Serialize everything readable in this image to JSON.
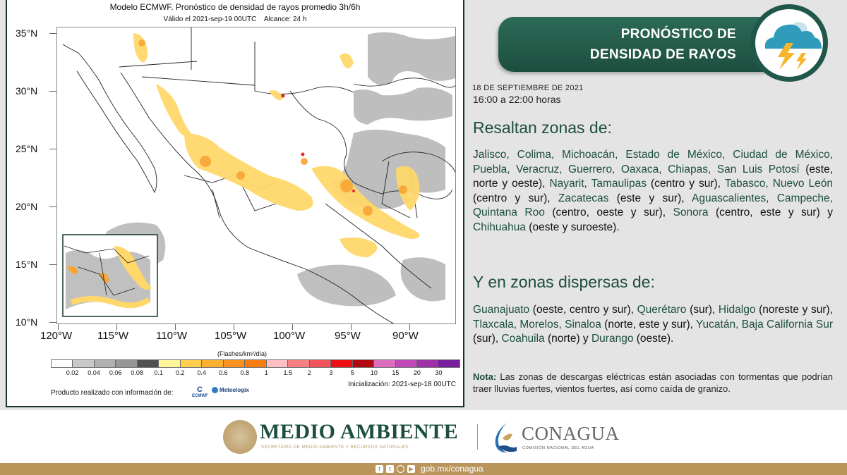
{
  "map": {
    "title": "Modelo ECMWF. Pronóstico de densidad de rayos promedio 3h/6h",
    "subtitle": "Válido el 2021-sep-19 00UTC    Alcance: 24 h",
    "lat_labels": [
      "35°N",
      "30°N",
      "25°N",
      "20°N",
      "15°N",
      "10°N"
    ],
    "lon_labels": [
      "120°W",
      "115°W",
      "110°W",
      "105°W",
      "100°W",
      "95°W",
      "90°W"
    ],
    "colorbar": {
      "unit": "(Flashes/km²/día)",
      "colors": [
        "#ffffff",
        "#c8c8c8",
        "#b0b0b0",
        "#969696",
        "#505050",
        "#fff59a",
        "#ffcf50",
        "#ffb030",
        "#fb9320",
        "#f67d10",
        "#ffbfc3",
        "#f98080",
        "#f2545b",
        "#ee1010",
        "#b00a10",
        "#dc6cbc",
        "#c048b8",
        "#9e30aa",
        "#7a1ea0"
      ],
      "ticks": [
        "0.02",
        "0.04",
        "0.06",
        "0.08",
        "0.1",
        "0.2",
        "0.4",
        "0.6",
        "0.8",
        "1",
        "1.5",
        "2",
        "3",
        "5",
        "10",
        "15",
        "20",
        "30"
      ]
    },
    "initialization": "Inicialización: 2021-sep-18 00UTC",
    "credit": "Producto realizado con información de:",
    "logos": {
      "ecmwf": "ECMWF",
      "meteologix": "Meteologix"
    }
  },
  "banner": {
    "line1": "PRONÓSTICO DE",
    "line2": "DENSIDAD DE RAYOS",
    "icon": "storm-cloud-lightning-icon"
  },
  "date": "18 DE SEPTIEMBRE DE 2021",
  "hours": "16:00 a 22:00 horas",
  "highlight": {
    "heading": "Resaltan zonas de:",
    "items": [
      {
        "state": "Jalisco",
        "detail": ""
      },
      {
        "state": "Colima",
        "detail": ""
      },
      {
        "state": "Michoacán",
        "detail": ""
      },
      {
        "state": "Estado de México",
        "detail": ""
      },
      {
        "state": "Ciudad de México",
        "detail": ""
      },
      {
        "state": "Puebla",
        "detail": ""
      },
      {
        "state": "Veracruz",
        "detail": ""
      },
      {
        "state": "Guerrero",
        "detail": ""
      },
      {
        "state": "Oaxaca",
        "detail": ""
      },
      {
        "state": "Chiapas",
        "detail": ""
      },
      {
        "state": "San Luis Potosí",
        "detail": "(este, norte y oeste)"
      },
      {
        "state": "Nayarit",
        "detail": ""
      },
      {
        "state": "Tamaulipas",
        "detail": "(centro y sur)"
      },
      {
        "state": "Tabasco",
        "detail": ""
      },
      {
        "state": "Nuevo León",
        "detail": "(centro y sur)"
      },
      {
        "state": "Zacatecas",
        "detail": "(este y sur)"
      },
      {
        "state": "Aguascalientes",
        "detail": ""
      },
      {
        "state": "Campeche",
        "detail": ""
      },
      {
        "state": "Quintana Roo",
        "detail": "(centro, oeste y sur)"
      },
      {
        "state": "Sonora",
        "detail": "(centro, este y sur)"
      },
      {
        "state": "Chihuahua",
        "detail": "(oeste y suroeste)"
      }
    ],
    "text": {
      "p1": "Jalisco, Colima, Michoacán, Estado de México, Ciudad de México, Puebla, Veracruz, Guerrero, Oaxaca, Chiapas, San Luis Potosí",
      "p2": " (este, norte y oeste), ",
      "p3": "Nayarit, Tamaulipas",
      "p4": " (centro y sur), ",
      "p5": "Tabasco, Nuevo León",
      "p6": " (centro y sur), ",
      "p7": "Zacatecas",
      "p8": " (este y sur), ",
      "p9": "Aguascalientes, Campeche, Quintana Roo",
      "p10": " (centro, oeste y sur), ",
      "p11": "Sonora",
      "p12": " (centro, este y sur) y ",
      "p13": "Chihuahua",
      "p14": " (oeste y suroeste)."
    }
  },
  "scattered": {
    "heading": "Y en zonas dispersas de:",
    "items": [
      {
        "state": "Guanajuato",
        "detail": "(oeste, centro y sur)"
      },
      {
        "state": "Querétaro",
        "detail": "(sur)"
      },
      {
        "state": "Hidalgo",
        "detail": "(noreste y sur)"
      },
      {
        "state": "Tlaxcala",
        "detail": ""
      },
      {
        "state": "Morelos",
        "detail": ""
      },
      {
        "state": "Sinaloa",
        "detail": "(norte, este y sur)"
      },
      {
        "state": "Yucatán",
        "detail": ""
      },
      {
        "state": "Baja California Sur",
        "detail": "(sur)"
      },
      {
        "state": "Coahuila",
        "detail": "(norte)"
      },
      {
        "state": "Durango",
        "detail": "(oeste)"
      }
    ],
    "text": {
      "p1": "Guanajuato",
      "p2": " (oeste, centro y sur), ",
      "p3": "Querétaro",
      "p4": " (sur), ",
      "p5": "Hidalgo",
      "p6": " (noreste y sur), ",
      "p7": "Tlaxcala, Morelos, Sinaloa",
      "p8": " (norte, este y sur), ",
      "p9": "Yucatán, Baja California Sur",
      "p10": " (sur), ",
      "p11": "Coahuila",
      "p12": " (norte) y ",
      "p13": "Durango",
      "p14": " (oeste)."
    }
  },
  "note": {
    "label": "Nota:",
    "text": " Las zonas de descargas eléctricas están asociadas con tormentas que podrían traer lluvias fuertes, vientos fuertes, así como caída de granizo."
  },
  "footer": {
    "semarnat": "MEDIO AMBIENTE",
    "semarnat_sub": "SECRETARÍA DE MEDIO AMBIENTE Y RECURSOS NATURALES",
    "conagua": "CONAGUA",
    "conagua_sub": "COMISIÓN NACIONAL DEL AGUA",
    "social_icons": [
      "facebook-icon",
      "twitter-icon",
      "instagram-icon",
      "youtube-icon"
    ],
    "url": "gob.mx/conagua"
  },
  "colors": {
    "brand_green": "#1d4e3f",
    "gold": "#b9955c",
    "background": "#e4e4e4"
  }
}
